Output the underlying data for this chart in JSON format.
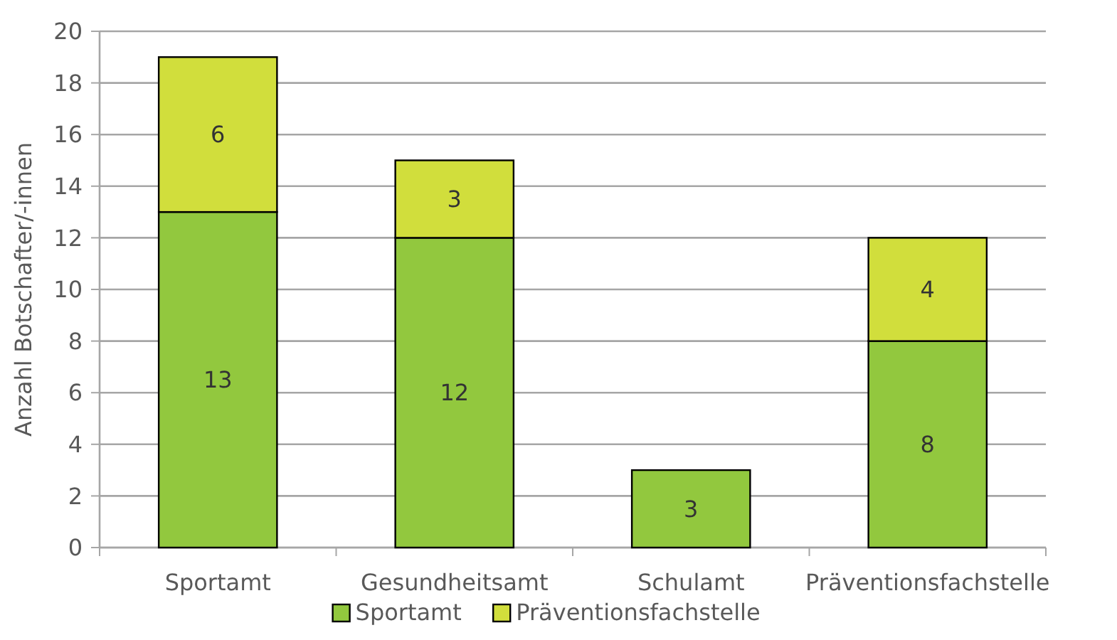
{
  "chart_data": {
    "type": "bar",
    "stacked": true,
    "ylabel": "Anzahl Botschafter/-innen",
    "categories": [
      "Sportamt",
      "Gesundheitsamt",
      "Schulamt",
      "Präventionsfachstelle"
    ],
    "series": [
      {
        "name": "Sportamt",
        "color": "#92c83e",
        "values": [
          13,
          12,
          3,
          8
        ]
      },
      {
        "name": "Präventionsfachstelle",
        "color": "#d1de3c",
        "values": [
          6,
          3,
          null,
          4
        ]
      }
    ],
    "ylim": [
      0,
      20
    ],
    "yticks": [
      0,
      2,
      4,
      6,
      8,
      10,
      12,
      14,
      16,
      18,
      20
    ],
    "grid": "y",
    "legend": "bottom",
    "data_labels": true
  }
}
